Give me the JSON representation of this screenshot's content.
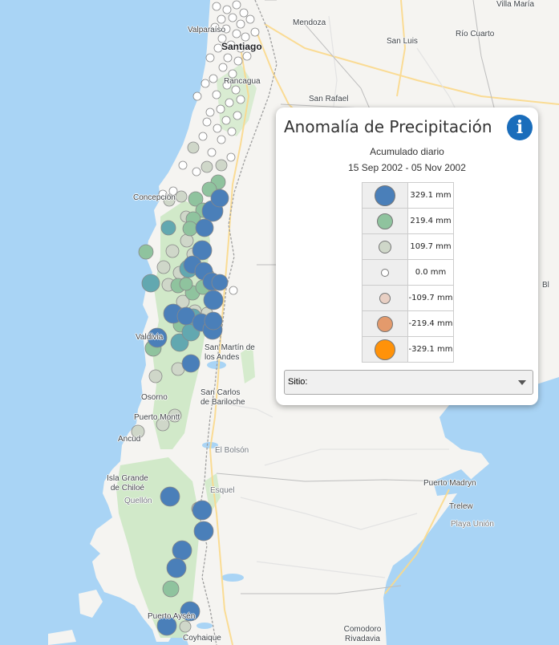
{
  "panel": {
    "title": "Anomalía de Precipitación",
    "subtitle": "Acumulado diario",
    "date_range": "15 Sep 2002 - 05 Nov 2002",
    "site_label": "Sitio:",
    "info_icon": "info-icon"
  },
  "legend": [
    {
      "label": "329.1 mm",
      "color": "#4a7fb9"
    },
    {
      "label": "219.4 mm",
      "color": "#8fc39e"
    },
    {
      "label": "109.7 mm",
      "color": "#cfd7c9"
    },
    {
      "label": "0.0 mm",
      "color": "#ffffff"
    },
    {
      "label": "-109.7 mm",
      "color": "#e8cfc3"
    },
    {
      "label": "-219.4 mm",
      "color": "#e39a6c"
    },
    {
      "label": "-329.1 mm",
      "color": "#ff9209"
    }
  ],
  "places": [
    {
      "name": "Villa María",
      "cls": ""
    },
    {
      "name": "Valparaíso",
      "cls": ""
    },
    {
      "name": "Mendoza",
      "cls": ""
    },
    {
      "name": "Santiago",
      "cls": "big"
    },
    {
      "name": "San Luis",
      "cls": ""
    },
    {
      "name": "Río Cuarto",
      "cls": ""
    },
    {
      "name": "Rancagua",
      "cls": ""
    },
    {
      "name": "San Rafael",
      "cls": ""
    },
    {
      "name": "Concepción",
      "cls": ""
    },
    {
      "name": "Valdivia",
      "cls": ""
    },
    {
      "name": "San Martín de los Andes",
      "cls": ""
    },
    {
      "name": "Osorno",
      "cls": ""
    },
    {
      "name": "San Carlos de Bariloche",
      "cls": ""
    },
    {
      "name": "Puerto Montt",
      "cls": ""
    },
    {
      "name": "Ancud",
      "cls": ""
    },
    {
      "name": "El Bolsón",
      "cls": "gray"
    },
    {
      "name": "Isla Grande de Chiloé",
      "cls": ""
    },
    {
      "name": "Quellón",
      "cls": "gray"
    },
    {
      "name": "Esquel",
      "cls": "gray"
    },
    {
      "name": "Puerto Madryn",
      "cls": ""
    },
    {
      "name": "Trelew",
      "cls": ""
    },
    {
      "name": "Playa Unión",
      "cls": "gray"
    },
    {
      "name": "Puerto Aysén",
      "cls": ""
    },
    {
      "name": "Coyhaique",
      "cls": ""
    },
    {
      "name": "Comodoro Rivadavia",
      "cls": ""
    },
    {
      "name": "Bl",
      "cls": ""
    }
  ]
}
